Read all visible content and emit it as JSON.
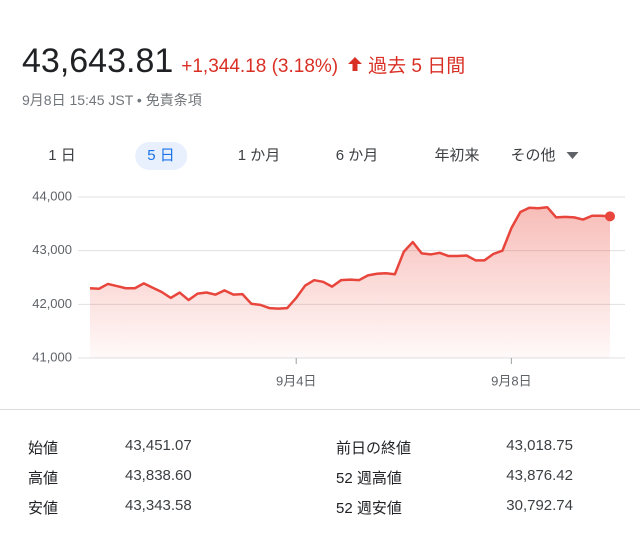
{
  "header": {
    "price": "43,643.81",
    "change": "+1,344.18 (3.18%)",
    "period": "過去 5 日間",
    "timestamp": "9月8日 15:45 JST • 免責条項"
  },
  "tabs": {
    "items": [
      "1 日",
      "5 日",
      "1 か月",
      "6 か月",
      "年初来",
      "その他"
    ],
    "selected": 1
  },
  "chart_data": {
    "type": "line",
    "color": "#e8453c",
    "grid": true,
    "categories": [
      null,
      null,
      null,
      null,
      null,
      null,
      null,
      null,
      null,
      null,
      null,
      null,
      null,
      null,
      null,
      null,
      null,
      null,
      null,
      null,
      null,
      null,
      null,
      "9月4日",
      null,
      null,
      null,
      null,
      null,
      null,
      null,
      null,
      null,
      null,
      null,
      null,
      null,
      null,
      null,
      null,
      null,
      null,
      null,
      null,
      null,
      null,
      null,
      "9月8日",
      null,
      null,
      null,
      null,
      null,
      null,
      null,
      null,
      null,
      null,
      null
    ],
    "values": [
      42300,
      42290,
      42380,
      42340,
      42300,
      42300,
      42390,
      42310,
      42230,
      42120,
      42220,
      42080,
      42200,
      42220,
      42180,
      42260,
      42180,
      42190,
      42010,
      41990,
      41930,
      41920,
      41930,
      42120,
      42350,
      42450,
      42420,
      42330,
      42450,
      42460,
      42450,
      42540,
      42570,
      42580,
      42560,
      42980,
      43160,
      42950,
      42930,
      42960,
      42900,
      42900,
      42910,
      42820,
      42820,
      42940,
      43000,
      43420,
      43720,
      43800,
      43790,
      43810,
      43620,
      43630,
      43620,
      43580,
      43650,
      43650,
      43640
    ],
    "ylim": [
      41000,
      44000
    ],
    "yticks": [
      {
        "value": 41000,
        "label": "41,000"
      },
      {
        "value": 42000,
        "label": "42,000"
      },
      {
        "value": 43000,
        "label": "43,000"
      },
      {
        "value": 44000,
        "label": "44,000"
      }
    ]
  },
  "stats": {
    "rows": [
      [
        "始値",
        "43,451.07",
        "前日の終値",
        "43,018.75"
      ],
      [
        "高値",
        "43,838.60",
        "52 週高値",
        "43,876.42"
      ],
      [
        "安値",
        "43,343.58",
        "52 週安値",
        "30,792.74"
      ]
    ]
  }
}
